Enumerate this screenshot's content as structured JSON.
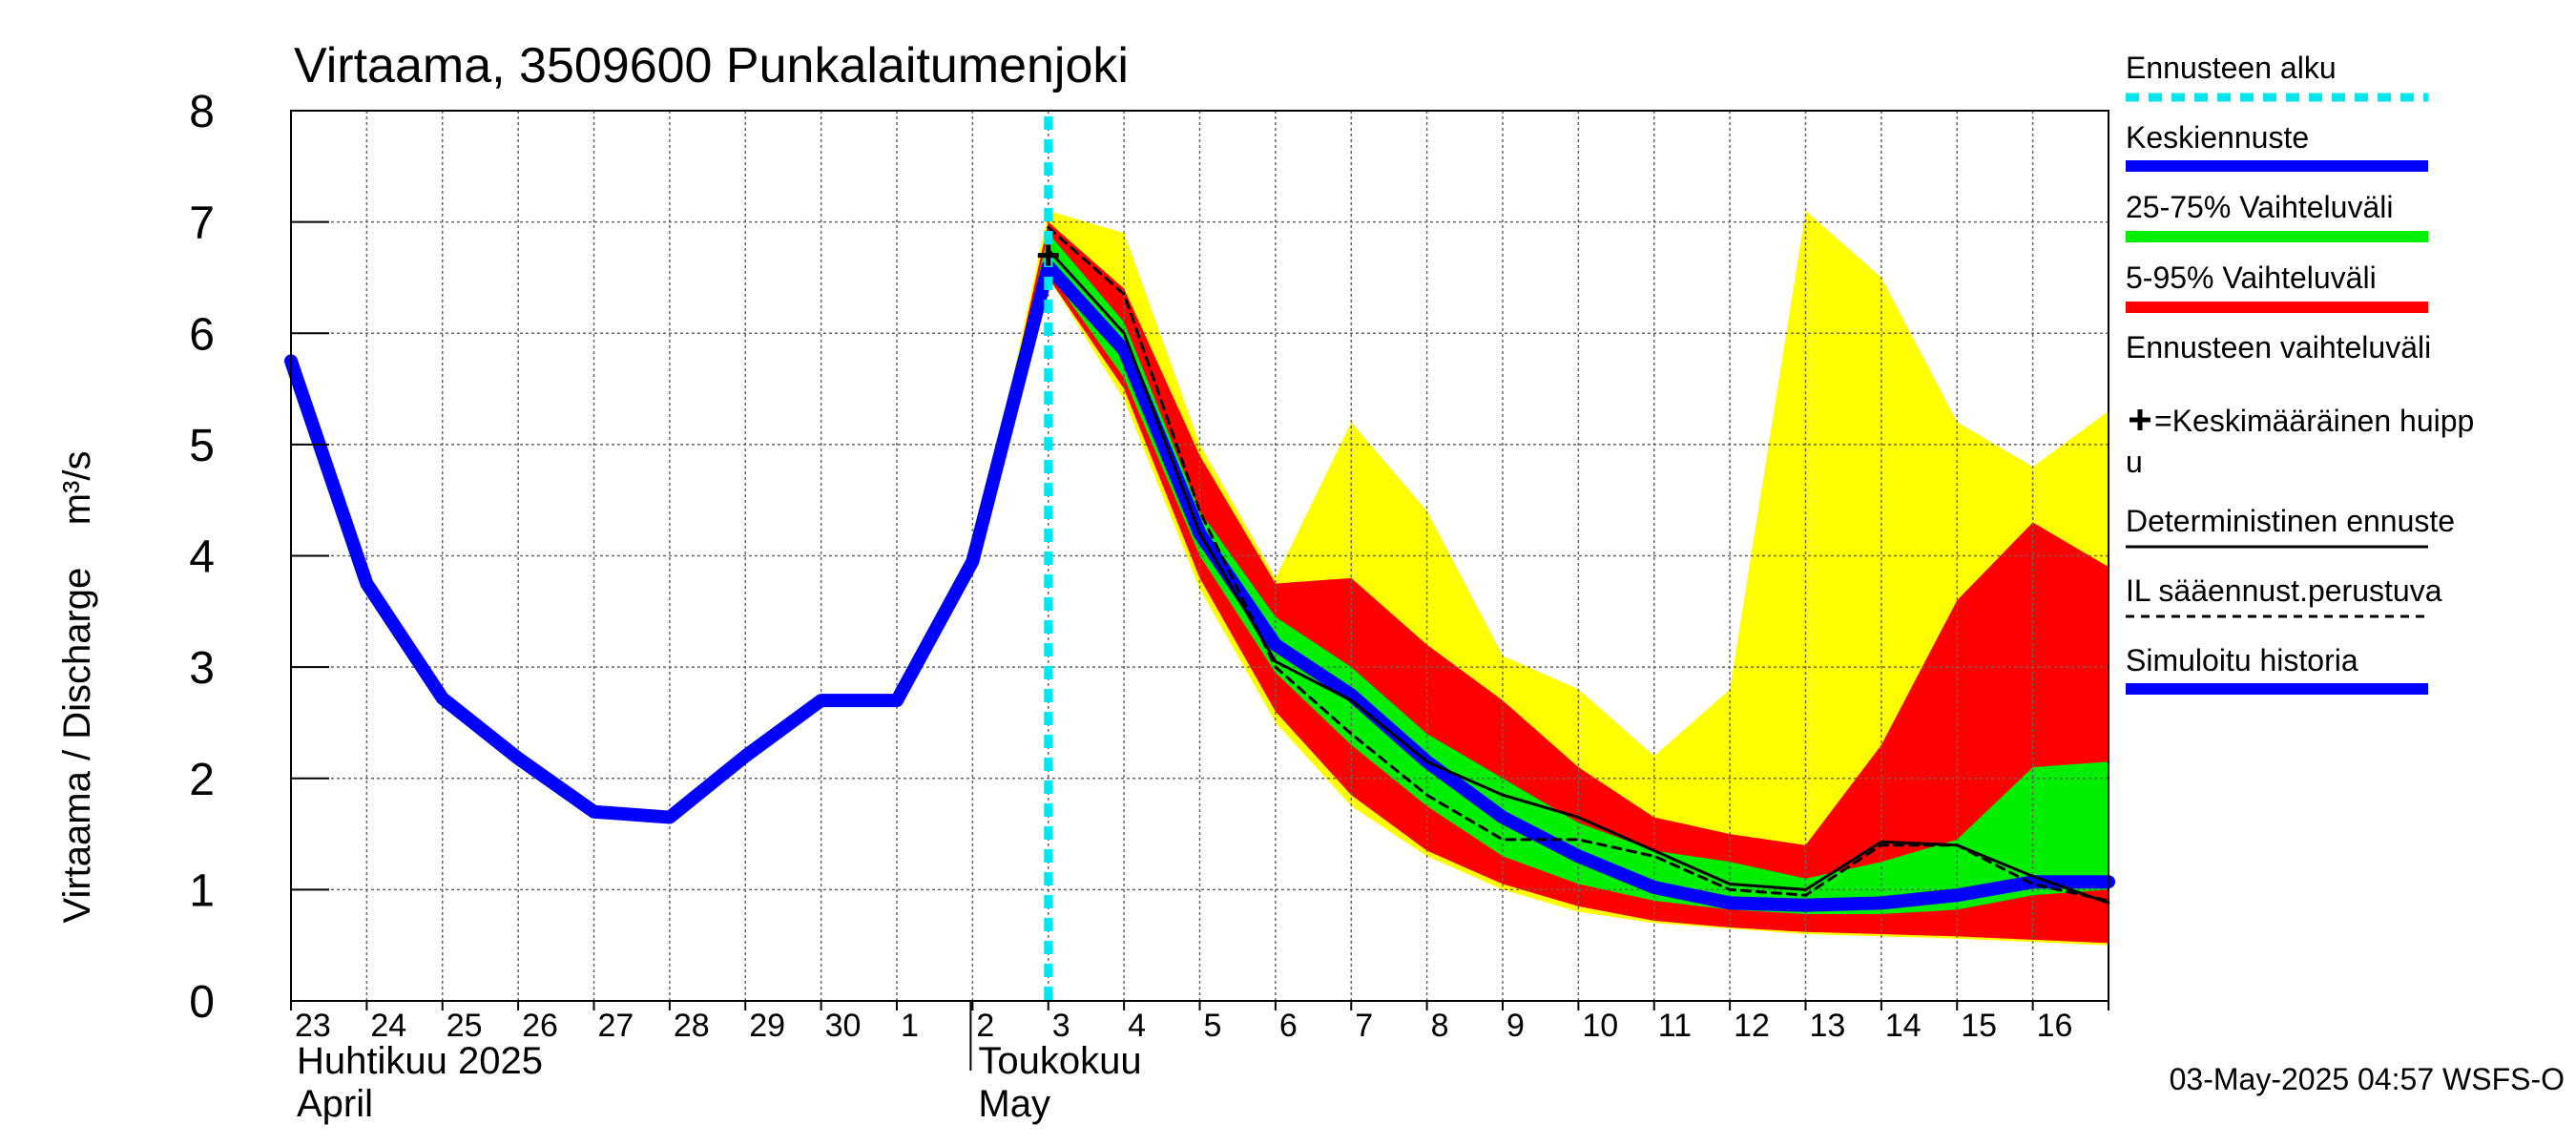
{
  "chart_data": {
    "type": "area",
    "title": "Virtaama, 3509600 Punkalaitumenjoki",
    "ylabel": "Virtaama / Discharge    m³/s",
    "ylim": [
      0,
      8
    ],
    "yticks": [
      "0",
      "1",
      "2",
      "3",
      "4",
      "5",
      "6",
      "7",
      "8"
    ],
    "x_day_labels": [
      "23",
      "24",
      "25",
      "26",
      "27",
      "28",
      "29",
      "30",
      "1",
      "2",
      "3",
      "4",
      "5",
      "6",
      "7",
      "8",
      "9",
      "10",
      "11",
      "12",
      "13",
      "14",
      "15",
      "16"
    ],
    "x_range_days": [
      0,
      24
    ],
    "month_labels": [
      {
        "line1": "Huhtikuu  2025",
        "line2": "April",
        "day_index": 0
      },
      {
        "line1": "Toukokuu",
        "line2": "May",
        "day_index": 9
      }
    ],
    "forecast_start_day": 10.0,
    "series": [
      {
        "name": "Ennusteen vaihteluväli",
        "kind": "band",
        "color": "#ffff00",
        "x": [
          9,
          10,
          11,
          12,
          13,
          14,
          15,
          16,
          17,
          18,
          19,
          20,
          21,
          22,
          23,
          24
        ],
        "low": [
          3.9,
          6.5,
          5.4,
          3.7,
          2.5,
          1.75,
          1.3,
          1.0,
          0.8,
          0.7,
          0.65,
          0.6,
          0.58,
          0.56,
          0.53,
          0.5
        ],
        "high": [
          3.9,
          7.1,
          6.9,
          5.0,
          3.8,
          5.2,
          4.4,
          3.1,
          2.8,
          2.2,
          2.8,
          7.1,
          6.5,
          5.2,
          4.8,
          5.3
        ]
      },
      {
        "name": "5-95% Vaihteluväli",
        "kind": "band",
        "color": "#ff0000",
        "x": [
          9,
          10,
          11,
          12,
          13,
          14,
          15,
          16,
          17,
          18,
          19,
          20,
          21,
          22,
          23,
          24
        ],
        "low": [
          3.9,
          6.5,
          5.5,
          3.8,
          2.6,
          1.85,
          1.35,
          1.05,
          0.85,
          0.72,
          0.66,
          0.62,
          0.6,
          0.58,
          0.55,
          0.52
        ],
        "high": [
          3.9,
          7.0,
          6.4,
          4.9,
          3.75,
          3.8,
          3.2,
          2.7,
          2.1,
          1.65,
          1.5,
          1.4,
          2.3,
          3.6,
          4.3,
          3.9
        ]
      },
      {
        "name": "25-75% Vaihteluväli",
        "kind": "band",
        "color": "#00ee00",
        "x": [
          9,
          10,
          11,
          12,
          13,
          14,
          15,
          16,
          17,
          18,
          19,
          20,
          21,
          22,
          23,
          24
        ],
        "low": [
          3.9,
          6.55,
          5.6,
          4.0,
          2.95,
          2.3,
          1.75,
          1.3,
          1.05,
          0.9,
          0.82,
          0.78,
          0.78,
          0.82,
          0.95,
          1.0
        ],
        "high": [
          3.9,
          6.9,
          6.1,
          4.4,
          3.45,
          3.0,
          2.4,
          2.0,
          1.6,
          1.35,
          1.25,
          1.1,
          1.25,
          1.45,
          2.1,
          2.15
        ]
      },
      {
        "name": "Keskiennuste",
        "kind": "line",
        "color": "#0000ff",
        "x": [
          10,
          11,
          12,
          13,
          14,
          15,
          16,
          17,
          18,
          19,
          20,
          21,
          22,
          23,
          24
        ],
        "values": [
          6.6,
          5.85,
          4.2,
          3.2,
          2.75,
          2.15,
          1.65,
          1.3,
          1.02,
          0.88,
          0.86,
          0.88,
          0.95,
          1.07,
          1.07
        ]
      },
      {
        "name": "Deterministinen ennuste",
        "kind": "line",
        "color": "#000000",
        "x": [
          10,
          11,
          12,
          13,
          14,
          15,
          16,
          17,
          18,
          19,
          20,
          21,
          22,
          23,
          24
        ],
        "values": [
          6.75,
          6.0,
          4.2,
          3.05,
          2.7,
          2.15,
          1.85,
          1.65,
          1.35,
          1.05,
          1.0,
          1.43,
          1.4,
          1.12,
          0.88
        ]
      },
      {
        "name": "IL sääennust.perustuva",
        "kind": "dashed",
        "color": "#000000",
        "x": [
          10,
          11,
          12,
          13,
          14,
          15,
          16,
          17,
          18,
          19,
          20,
          21,
          22,
          23,
          24
        ],
        "values": [
          6.95,
          6.35,
          4.4,
          3.0,
          2.4,
          1.85,
          1.45,
          1.45,
          1.3,
          1.0,
          0.95,
          1.4,
          1.4,
          1.05,
          0.9
        ]
      },
      {
        "name": "Simuloitu historia",
        "kind": "line",
        "color": "#0000ff",
        "x": [
          0,
          1,
          2,
          3,
          4,
          5,
          6,
          7,
          8,
          9,
          10
        ],
        "values": [
          5.75,
          3.75,
          2.72,
          2.18,
          1.7,
          1.65,
          2.2,
          2.7,
          2.7,
          3.95,
          6.6
        ]
      }
    ],
    "peak_marker": {
      "label": "+=Keskimääräinen huippu",
      "x": 10,
      "y": 6.7
    },
    "legend": {
      "placement": "right",
      "items": [
        {
          "label": "Ennusteen alku",
          "style": "dotted",
          "color": "#00e5ee"
        },
        {
          "label": "Keskiennuste",
          "style": "line",
          "color": "#0000ff"
        },
        {
          "label": "25-75% Vaihteluväli",
          "style": "line",
          "color": "#00ee00"
        },
        {
          "label": "5-95% Vaihteluväli",
          "style": "line",
          "color": "#ff0000"
        },
        {
          "label": "Ennusteen vaihteluväli",
          "style": "line",
          "color": "#ffff00"
        },
        {
          "label": "=Keskimääräinen huipp",
          "label2": "u",
          "style": "marker",
          "color": "#000000"
        },
        {
          "label": "Deterministinen ennuste",
          "style": "thin",
          "color": "#000000"
        },
        {
          "label": "IL sääennust.perustuva",
          "style": "dashed",
          "color": "#000000"
        },
        {
          "label": "Simuloitu historia",
          "style": "line",
          "color": "#0000ff"
        }
      ]
    },
    "footer": "03-May-2025 04:57 WSFS-O"
  }
}
